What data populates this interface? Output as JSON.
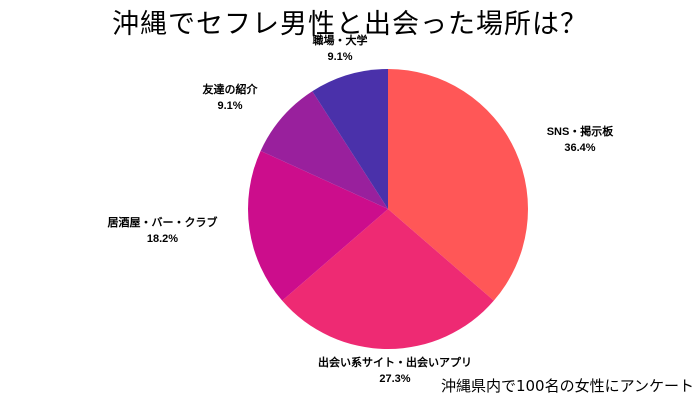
{
  "chart_data": {
    "type": "pie",
    "title": "沖縄でセフレ男性と出会った場所は？",
    "annotation": "沖縄県内で100名の女性にアンケート",
    "start_angle": "12 o'clock, clockwise",
    "slices": [
      {
        "label": "SNS・掲示板",
        "value": 36.4,
        "display": "36.4%",
        "color": "#FF5757"
      },
      {
        "label": "出会い系サイト・出会いアプリ",
        "value": 27.3,
        "display": "27.3%",
        "color": "#EE2A73"
      },
      {
        "label": "居酒屋・バー・クラブ",
        "value": 18.2,
        "display": "18.2%",
        "color": "#CC0D8C"
      },
      {
        "label": "友達の紹介",
        "value": 9.1,
        "display": "9.1%",
        "color": "#99209D"
      },
      {
        "label": "職場・大学",
        "value": 9.1,
        "display": "9.1%",
        "color": "#4A31AA"
      }
    ]
  }
}
